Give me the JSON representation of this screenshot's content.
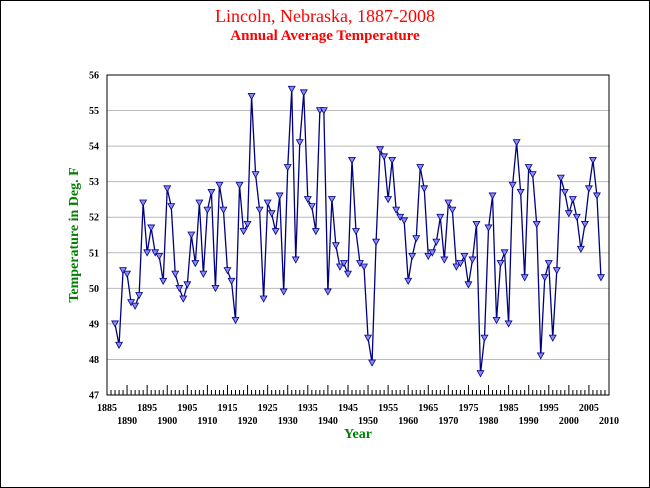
{
  "title": "Lincoln, Nebraska, 1887-2008",
  "subtitle": "Annual Average Temperature",
  "colors": {
    "title": "#ff0000",
    "axis_title": "#008000",
    "line": "#000080",
    "marker_fill": "#8888ff",
    "grid": "#bbbbbb"
  },
  "chart_data": {
    "type": "line",
    "xlabel": "Year",
    "ylabel": "Temperature in Deg. F",
    "xlim": [
      1885,
      2010
    ],
    "ylim": [
      47,
      56
    ],
    "yticks": [
      "47",
      "48",
      "49",
      "50",
      "51",
      "52",
      "53",
      "54",
      "55",
      "56"
    ],
    "xticks_top": [
      "1885",
      "1895",
      "1905",
      "1915",
      "1925",
      "1935",
      "1945",
      "1955",
      "1965",
      "1975",
      "1985",
      "1995",
      "2005"
    ],
    "xticks_bottom": [
      "1890",
      "1900",
      "1910",
      "1920",
      "1930",
      "1940",
      "1950",
      "1960",
      "1970",
      "1980",
      "1990",
      "2000",
      "2010"
    ],
    "grid": "horizontal",
    "marker": "triangle-down",
    "x": [
      1887,
      1888,
      1889,
      1890,
      1891,
      1892,
      1893,
      1894,
      1895,
      1896,
      1897,
      1898,
      1899,
      1900,
      1901,
      1902,
      1903,
      1904,
      1905,
      1906,
      1907,
      1908,
      1909,
      1910,
      1911,
      1912,
      1913,
      1914,
      1915,
      1916,
      1917,
      1918,
      1919,
      1920,
      1921,
      1922,
      1923,
      1924,
      1925,
      1926,
      1927,
      1928,
      1929,
      1930,
      1931,
      1932,
      1933,
      1934,
      1935,
      1936,
      1937,
      1938,
      1939,
      1940,
      1941,
      1942,
      1943,
      1944,
      1945,
      1946,
      1947,
      1948,
      1949,
      1950,
      1951,
      1952,
      1953,
      1954,
      1955,
      1956,
      1957,
      1958,
      1959,
      1960,
      1961,
      1962,
      1963,
      1964,
      1965,
      1966,
      1967,
      1968,
      1969,
      1970,
      1971,
      1972,
      1973,
      1974,
      1975,
      1976,
      1977,
      1978,
      1979,
      1980,
      1981,
      1982,
      1983,
      1984,
      1985,
      1986,
      1987,
      1988,
      1989,
      1990,
      1991,
      1992,
      1993,
      1994,
      1995,
      1996,
      1997,
      1998,
      1999,
      2000,
      2001,
      2002,
      2003,
      2004,
      2005,
      2006,
      2007,
      2008
    ],
    "y": [
      49.0,
      48.4,
      50.5,
      50.4,
      49.6,
      49.5,
      49.8,
      52.4,
      51.0,
      51.7,
      51.0,
      50.9,
      50.2,
      52.8,
      52.3,
      50.4,
      50.0,
      49.7,
      50.1,
      51.5,
      50.7,
      52.4,
      50.4,
      52.2,
      52.7,
      50.0,
      52.9,
      52.2,
      50.5,
      50.2,
      49.1,
      52.9,
      51.6,
      51.8,
      55.4,
      53.2,
      52.2,
      49.7,
      52.4,
      52.1,
      51.6,
      52.6,
      49.9,
      53.4,
      55.6,
      50.8,
      54.1,
      55.5,
      52.5,
      52.3,
      51.6,
      55.0,
      55.0,
      49.9,
      52.5,
      51.2,
      50.6,
      50.7,
      50.4,
      53.6,
      51.6,
      50.7,
      50.6,
      48.6,
      47.9,
      51.3,
      53.9,
      53.7,
      52.5,
      53.6,
      52.2,
      52.0,
      51.9,
      50.2,
      50.9,
      51.4,
      53.4,
      52.8,
      50.9,
      51.0,
      51.3,
      52.0,
      50.8,
      52.4,
      52.2,
      50.6,
      50.7,
      50.9,
      50.1,
      50.8,
      51.8,
      47.6,
      48.6,
      51.7,
      52.6,
      49.1,
      50.7,
      51.0,
      49.0,
      52.9,
      54.1,
      52.7,
      50.3,
      53.4,
      53.2,
      51.8,
      48.1,
      50.3,
      50.7,
      48.6,
      50.5,
      53.1,
      52.7,
      52.1,
      52.5,
      52.0,
      51.1,
      51.8,
      52.8,
      53.6,
      52.6,
      50.3
    ]
  }
}
